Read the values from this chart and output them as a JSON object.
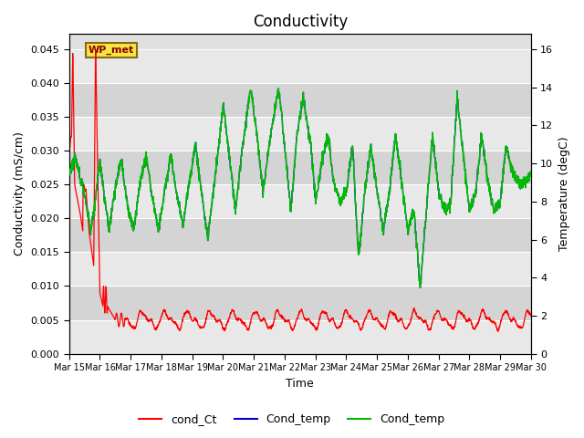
{
  "title": "Conductivity",
  "xlabel": "Time",
  "ylabel_left": "Conductivity (mS/cm)",
  "ylabel_right": "Temperature (degC)",
  "ylim_left": [
    0.0,
    0.04725
  ],
  "ylim_right": [
    0,
    16.8
  ],
  "yticks_left": [
    0.0,
    0.005,
    0.01,
    0.015,
    0.02,
    0.025,
    0.03,
    0.035,
    0.04,
    0.045
  ],
  "yticks_right": [
    0,
    2,
    4,
    6,
    8,
    10,
    12,
    14,
    16
  ],
  "xtick_labels": [
    "Mar 15",
    "Mar 16",
    "Mar 17",
    "Mar 18",
    "Mar 19",
    "Mar 20",
    "Mar 21",
    "Mar 22",
    "Mar 23",
    "Mar 24",
    "Mar 25",
    "Mar 26",
    "Mar 27",
    "Mar 28",
    "Mar 29",
    "Mar 30"
  ],
  "legend_entries": [
    "cond_Ct",
    "Cond_temp",
    "Cond_temp"
  ],
  "legend_colors": [
    "#ff0000",
    "#0000cc",
    "#00bb00"
  ],
  "annotation_text": "WP_met",
  "cond_Ct_color": "#ff0000",
  "cond_temp_blue_color": "#0000cc",
  "cond_temp_green_color": "#00bb00",
  "title_fontsize": 12,
  "axis_label_fontsize": 9,
  "tick_fontsize": 8,
  "band_colors": [
    "#e8e8e8",
    "#d4d4d4"
  ],
  "fig_bg": "#f2f2f2",
  "plot_bg": "#e0e0e0"
}
